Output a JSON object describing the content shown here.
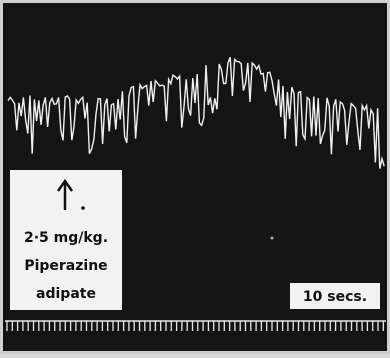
{
  "labels": {
    "dose": "2·5 mg/kg.",
    "drug_line1": "Piperazine",
    "drug_line2": "adipate",
    "time_scale": "10 secs."
  }
}
